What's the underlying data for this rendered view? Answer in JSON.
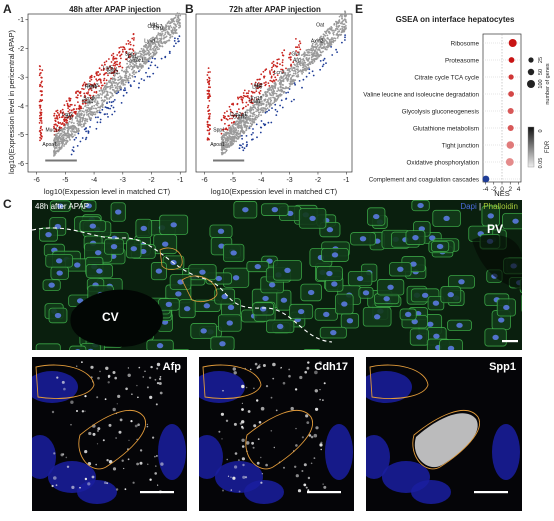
{
  "panels": {
    "a": {
      "letter": "A",
      "title": "48h after APAP injection",
      "xlabel": "log10(Expession level in matched CT)",
      "ylabel": "log10(Expression level in pericentral APAP)",
      "xticks": [
        "-6",
        "-5",
        "-4",
        "-3",
        "-2",
        "-1"
      ],
      "yticks": [
        "-1",
        "-2",
        "-3",
        "-4",
        "-5",
        "-6"
      ],
      "genes": [
        "Apoa1",
        "Lcn2",
        "Saa1",
        "Saa3",
        "Saa2",
        "Cyp2e1",
        "Muc13",
        "Afp",
        "Rbp4",
        "Spp1",
        "Ly6d",
        "Mt1",
        "Sox9",
        "Lgr5",
        "Glul",
        "Oat",
        "Cdh17",
        "Lcn1"
      ],
      "colors": {
        "up": "#c8231e",
        "down": "#1e3c96",
        "other": "#9a9a9a"
      }
    },
    "b": {
      "letter": "B",
      "title": "72h after APAP injection",
      "xlabel": "log10(Expession level in matched CT)",
      "xticks": [
        "-6",
        "-5",
        "-4",
        "-3",
        "-2",
        "-1"
      ],
      "genes": [
        "Apoa1",
        "Cyp2e1",
        "Saa1",
        "Mt2",
        "Lcn2",
        "Afp",
        "Spp1",
        "Cdh17",
        "Lgr5",
        "Glul",
        "Axin2",
        "Oat",
        "Krt19"
      ]
    },
    "e": {
      "letter": "E",
      "chart_data": {
        "type": "scatter",
        "title": "GSEA on interface hepatocytes",
        "xlabel": "NES",
        "xticks": [
          "-4",
          "-2",
          "0",
          "2",
          "4"
        ],
        "categories": [
          "Ribosome",
          "Proteasome",
          "Citrate cycle TCA cycle",
          "Valine leucine and isoleucine degradation",
          "Glycolysis gluconeogenesis",
          "Glutathione metabolism",
          "Tight junction",
          "Oxidative phosphorylation",
          "Complement and coagulation cascades"
        ],
        "nes": [
          2.6,
          2.3,
          2.2,
          2.2,
          2.1,
          2.1,
          2.0,
          1.9,
          -3.9
        ],
        "gene_count": [
          100,
          35,
          25,
          35,
          40,
          40,
          85,
          95,
          60
        ],
        "fdr": [
          0.0,
          0.0,
          0.01,
          0.015,
          0.02,
          0.02,
          0.03,
          0.035,
          0.03
        ],
        "size_legend_title": "number of genes",
        "size_legend_values": [
          "25",
          "50",
          "100"
        ],
        "fdr_legend_title": "FDR",
        "fdr_legend_values": [
          "0",
          "0.05"
        ]
      }
    },
    "c": {
      "letter": "C",
      "caption": "48h after APAP",
      "stain_dapi": "Dapi",
      "stain_sep": " | ",
      "stain_phalloidin": "Phalloidin",
      "region_cv": "CV",
      "region_pv": "PV",
      "insets": [
        "Afp",
        "Cdh17",
        "Spp1"
      ]
    }
  },
  "colors": {
    "dapi": "#4a6ad8",
    "phalloidin": "#a6c93a",
    "membrane": "#3fb04a",
    "outline": "#e09a3a"
  }
}
